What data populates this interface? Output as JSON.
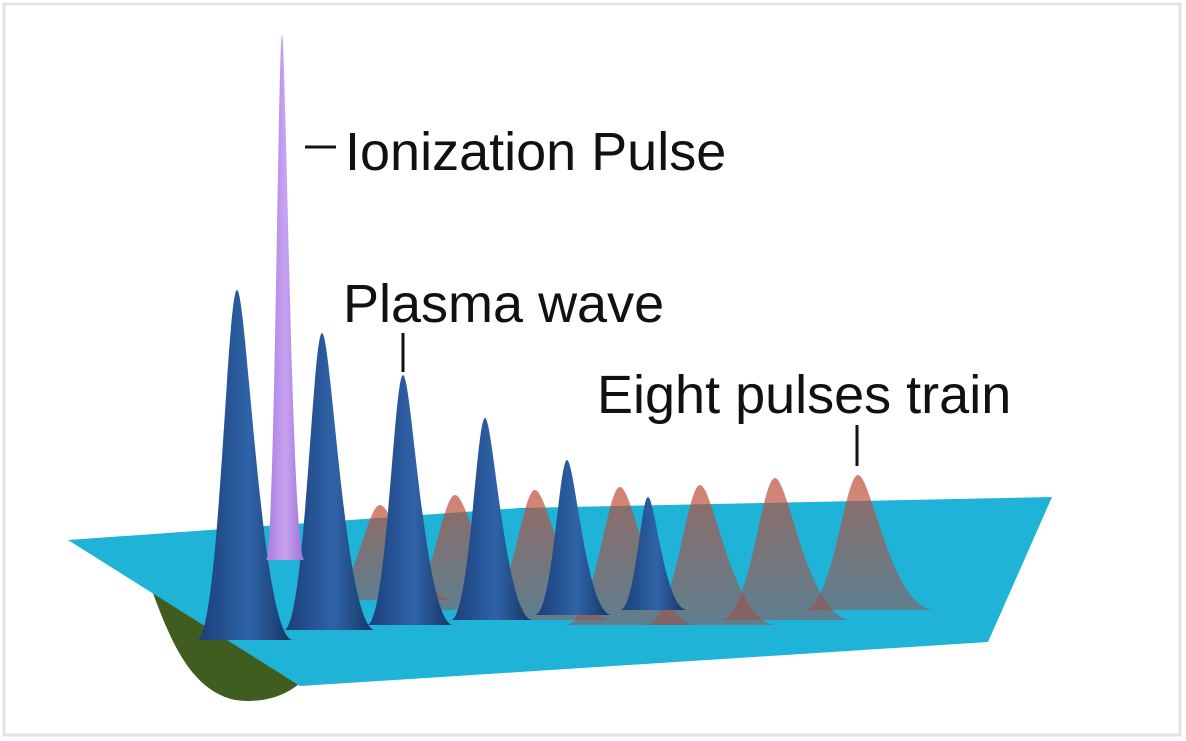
{
  "labels": {
    "ionization": "Ionization Pulse",
    "plasma": "Plasma wave",
    "train": "Eight pulses train"
  }
}
